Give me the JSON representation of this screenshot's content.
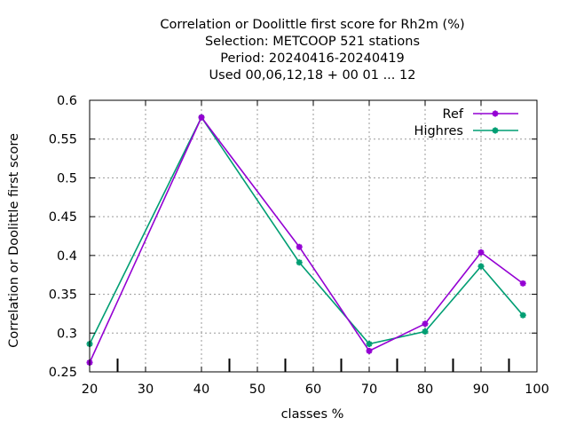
{
  "chart_data": {
    "type": "line",
    "title_lines": [
      "Correlation or Doolittle first score  for Rh2m (%)",
      "Selection: METCOOP    521 stations",
      "Period: 20240416-20240419",
      "Used  00,06,12,18 + 00 01 ... 12"
    ],
    "xlabel": "classes %",
    "ylabel": "Correlation or Doolittle first score",
    "xlim": [
      20,
      100
    ],
    "ylim": [
      0.25,
      0.6
    ],
    "x_ticks": [
      20,
      30,
      40,
      50,
      60,
      70,
      80,
      90,
      100
    ],
    "y_ticks": [
      0.25,
      0.3,
      0.35,
      0.4,
      0.45,
      0.5,
      0.55,
      0.6
    ],
    "x_tick_labels": [
      "20",
      "30",
      "40",
      "50",
      "60",
      "70",
      "80",
      "90",
      "100"
    ],
    "y_tick_labels": [
      "0.25",
      "0.3",
      "0.35",
      "0.4",
      "0.45",
      "0.5",
      "0.55",
      "0.6"
    ],
    "class_boundary_marks": [
      25,
      45,
      55,
      65,
      75,
      85,
      95
    ],
    "grid": true,
    "legend_position": "top-right",
    "series": [
      {
        "name": "Ref",
        "color": "#9400d3",
        "x": [
          20,
          40,
          57.5,
          70,
          80,
          90,
          97.5
        ],
        "y": [
          0.262,
          0.578,
          0.411,
          0.277,
          0.312,
          0.404,
          0.364
        ]
      },
      {
        "name": "Highres",
        "color": "#009e73",
        "x": [
          20,
          40,
          57.5,
          70,
          80,
          90,
          97.5
        ],
        "y": [
          0.286,
          0.578,
          0.391,
          0.286,
          0.302,
          0.386,
          0.323
        ]
      }
    ]
  }
}
